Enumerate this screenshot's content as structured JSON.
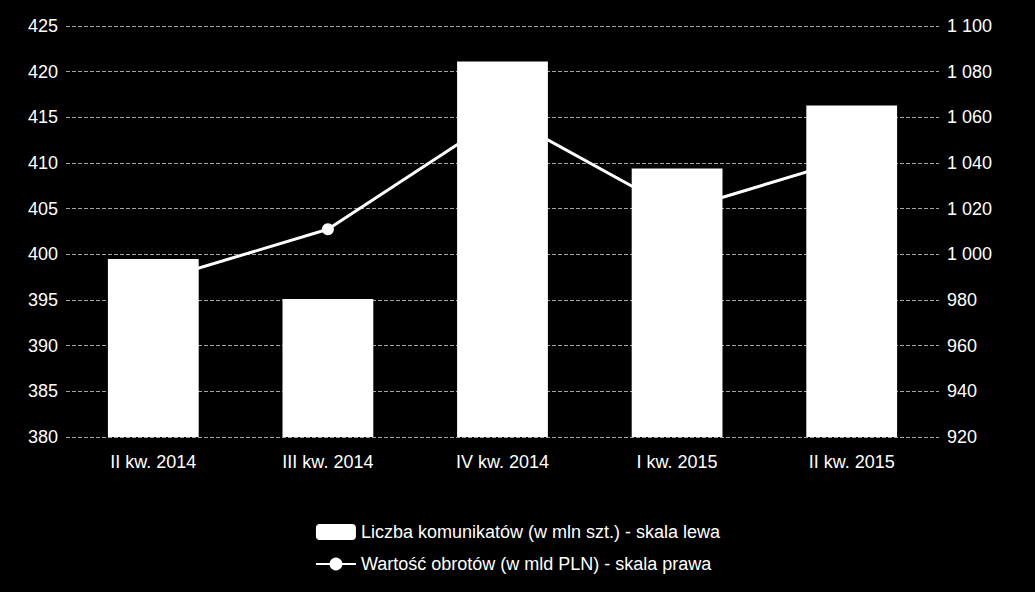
{
  "chart_data": {
    "type": "bar",
    "categories": [
      "II kw. 2014",
      "III kw. 2014",
      "IV kw. 2014",
      "I kw. 2015",
      "II kw. 2015"
    ],
    "series": [
      {
        "name": "Liczba komunikatów (w mln szt.) - skala lewa",
        "type": "bar",
        "color": "#ffffff",
        "values": [
          399.5,
          395.1,
          421.1,
          409.4,
          416.3
        ]
      },
      {
        "name": "Wartość obrotów (w mld PLN) - skala prawa",
        "type": "line",
        "axis": "y2",
        "color": "#ffffff",
        "marker": "circle",
        "values": [
          988,
          1011,
          1061,
          1019,
          1042
        ]
      }
    ],
    "ylim": [
      380,
      425
    ],
    "yticks": [
      380,
      385,
      390,
      395,
      400,
      405,
      410,
      415,
      420,
      425
    ],
    "y2lim": [
      920,
      1100
    ],
    "y2ticks": [
      920,
      940,
      960,
      980,
      {
        "value": 1000,
        "label": "1 000"
      },
      {
        "value": 1020,
        "label": "1 020"
      },
      {
        "value": 1040,
        "label": "1 040"
      },
      {
        "value": 1060,
        "label": "1 060"
      },
      {
        "value": 1080,
        "label": "1 080"
      },
      {
        "value": 1100,
        "label": "1 100"
      }
    ],
    "grid": true,
    "legend": "bottom"
  }
}
